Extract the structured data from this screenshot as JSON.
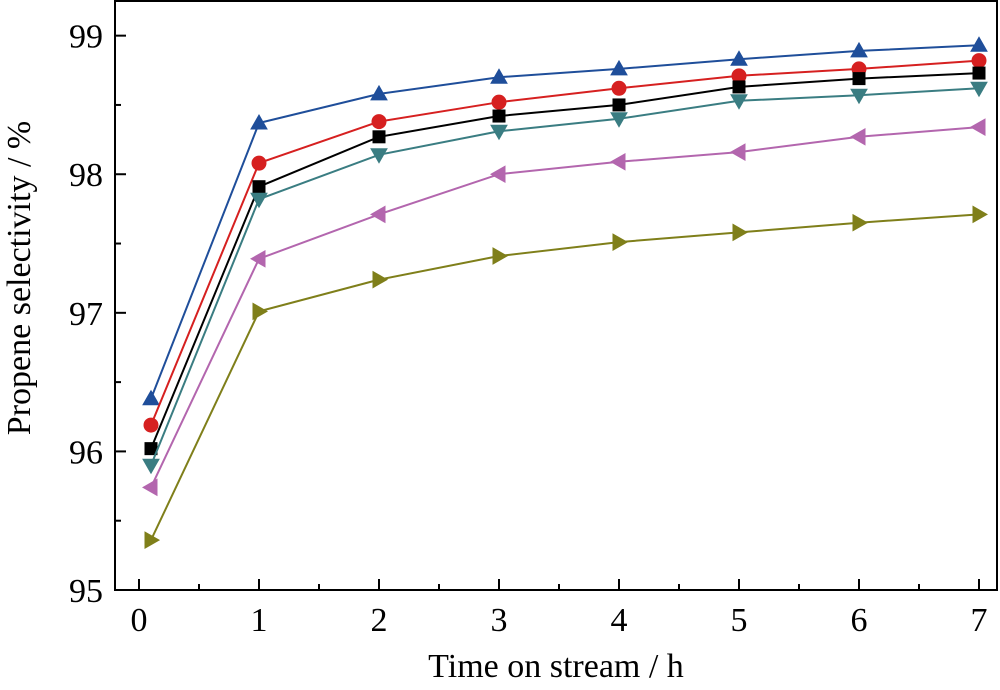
{
  "chart_data": {
    "type": "line",
    "title": "",
    "xlabel": "Time on stream / h",
    "ylabel": "Propene selectivity / %",
    "xlim": [
      -0.2,
      7.15
    ],
    "ylim": [
      95,
      99.25
    ],
    "x_ticks": [
      0,
      1,
      2,
      3,
      4,
      5,
      6,
      7
    ],
    "x_tick_labels": [
      "0",
      "1",
      "2",
      "3",
      "4",
      "5",
      "6",
      "7"
    ],
    "y_ticks": [
      95,
      96,
      97,
      98,
      99
    ],
    "y_tick_labels": [
      "95",
      "96",
      "97",
      "98",
      "99"
    ],
    "grid": false,
    "legend": "none",
    "x": [
      0.1,
      1,
      2,
      3,
      4,
      5,
      6,
      7
    ],
    "series": [
      {
        "marker": "triangle-up",
        "color": "#1f4e9a",
        "values": [
          96.38,
          98.37,
          98.58,
          98.7,
          98.76,
          98.83,
          98.89,
          98.93
        ]
      },
      {
        "marker": "circle",
        "color": "#d62020",
        "values": [
          96.19,
          98.08,
          98.38,
          98.52,
          98.62,
          98.71,
          98.76,
          98.82
        ]
      },
      {
        "marker": "square",
        "color": "#000000",
        "values": [
          96.02,
          97.91,
          98.27,
          98.42,
          98.5,
          98.63,
          98.69,
          98.73
        ]
      },
      {
        "marker": "triangle-down",
        "color": "#3a7d82",
        "values": [
          95.9,
          97.82,
          98.14,
          98.31,
          98.4,
          98.53,
          98.57,
          98.62
        ]
      },
      {
        "marker": "triangle-left",
        "color": "#b366ae",
        "values": [
          95.74,
          97.39,
          97.71,
          98.0,
          98.09,
          98.16,
          98.27,
          98.34
        ]
      },
      {
        "marker": "triangle-right",
        "color": "#7f7f1a",
        "values": [
          95.36,
          97.01,
          97.24,
          97.41,
          97.51,
          97.58,
          97.65,
          97.71
        ]
      }
    ]
  }
}
